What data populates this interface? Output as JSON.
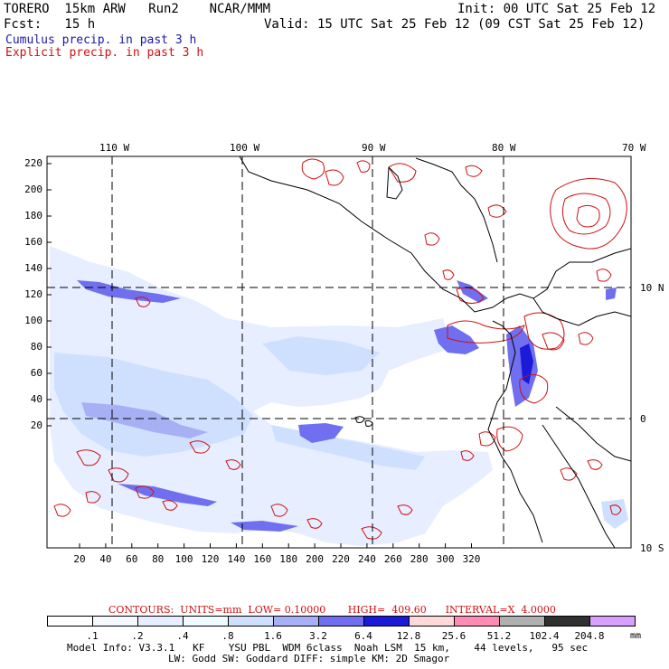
{
  "header": {
    "title_line": "TORERO  15km ARW   Run2    NCAR/MMM",
    "init": "Init: 00 UTC Sat 25 Feb 12",
    "fcst_line": "Fcst:   15 h",
    "valid": "Valid: 15 UTC Sat 25 Feb 12 (09 CST Sat 25 Feb 12)",
    "cumulus_label": "Cumulus precip. in past 3 h",
    "explicit_label": "Explicit precip. in past 3 h"
  },
  "colors": {
    "cumulus": "#1a1aa8",
    "explicit": "#d01010",
    "land": "#000000",
    "grid": "#000000"
  },
  "map": {
    "lon_labels": [
      "110 W",
      "100 W",
      "90 W",
      "80 W",
      "70 W"
    ],
    "lat_labels": [
      "10 N",
      "0",
      "10 S"
    ],
    "x_ticks": [
      "20",
      "40",
      "60",
      "80",
      "100",
      "120",
      "140",
      "160",
      "180",
      "200",
      "220",
      "240",
      "260",
      "280",
      "300",
      "320"
    ],
    "y_ticks": [
      "220",
      "200",
      "180",
      "160",
      "140",
      "120",
      "100",
      "80",
      "60",
      "40",
      "20"
    ]
  },
  "contours": {
    "label": "CONTOURS:  UNITS=mm  LOW= 0.10000       HIGH=  409.60      INTERVAL=X  4.0000"
  },
  "colorbar": {
    "labels": [
      ".1",
      ".2",
      ".4",
      ".8",
      "1.6",
      "3.2",
      "6.4",
      "12.8",
      "25.6",
      "51.2",
      "102.4",
      "204.8"
    ],
    "units": "mm",
    "colors": [
      "#ffffff",
      "#f4f8ff",
      "#e6eeff",
      "#eefcff",
      "#cfe0ff",
      "#a7b0f5",
      "#6f6ff0",
      "#1a1ad8",
      "#ffd9d9",
      "#ff8ab3",
      "#b0b0b0",
      "#303030",
      "#d8a0ff"
    ]
  },
  "footer": {
    "line1": "Model Info: V3.3.1   KF    YSU PBL  WDM 6class  Noah LSM  15 km,    44 levels,   95 sec",
    "line2": "LW: Godd SW: Goddard DIFF: simple KM: 2D Smagor"
  }
}
